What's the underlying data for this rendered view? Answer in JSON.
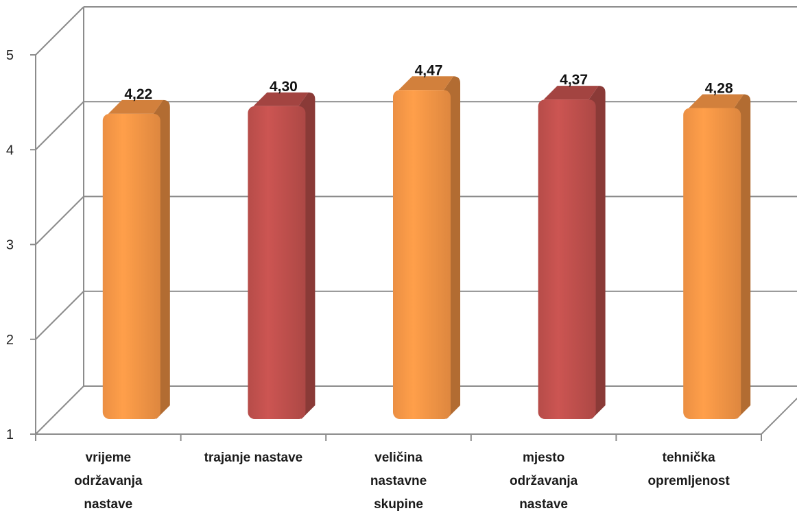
{
  "chart_data": {
    "type": "bar",
    "categories": [
      [
        "vrijeme",
        "održavanja",
        "nastave"
      ],
      [
        "trajanje nastave"
      ],
      [
        "veličina",
        "nastavne",
        "skupine"
      ],
      [
        "mjesto",
        "održavanja",
        "nastave"
      ],
      [
        "tehnička",
        "opremljenost"
      ]
    ],
    "values": [
      4.22,
      4.3,
      4.47,
      4.37,
      4.28
    ],
    "value_labels": [
      "4,22",
      "4,30",
      "4,47",
      "4,37",
      "4,28"
    ],
    "colors": [
      "#f79646",
      "#c0504d",
      "#f79646",
      "#c0504d",
      "#f79646"
    ],
    "ylim": [
      1,
      5
    ],
    "yticks": [
      1,
      2,
      3,
      4,
      5
    ],
    "ytick_labels": [
      "1",
      "2",
      "3",
      "4",
      "5"
    ],
    "grid": true,
    "style": "3d-cylinder-bar",
    "title": "",
    "xlabel": "",
    "ylabel": ""
  }
}
